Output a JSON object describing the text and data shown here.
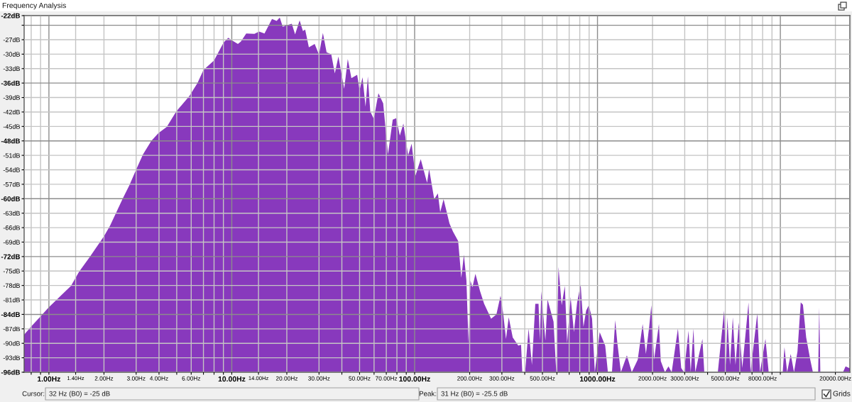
{
  "chart_data": {
    "type": "area",
    "title": "Frequency Analysis",
    "color": "#8839bd",
    "log": "x",
    "grid": true,
    "xlim": [
      0.732,
      24000
    ],
    "ylim": [
      -96,
      -22
    ],
    "xticks": [
      {
        "value": 0.8,
        "label": null
      },
      {
        "value": 0.9,
        "label": null
      },
      {
        "value": 1,
        "label": "1.00Hz"
      },
      {
        "value": 1.4,
        "label": "1.40Hz"
      },
      {
        "value": 2,
        "label": "2.00Hz"
      },
      {
        "value": 3,
        "label": "3.00Hz"
      },
      {
        "value": 4,
        "label": "4.00Hz"
      },
      {
        "value": 5,
        "label": null
      },
      {
        "value": 6,
        "label": "6.00Hz"
      },
      {
        "value": 7,
        "label": null
      },
      {
        "value": 8,
        "label": null
      },
      {
        "value": 9,
        "label": null
      },
      {
        "value": 10,
        "label": "10.00Hz"
      },
      {
        "value": 14,
        "label": "14.00Hz"
      },
      {
        "value": 20,
        "label": "20.00Hz"
      },
      {
        "value": 30,
        "label": "30.00Hz"
      },
      {
        "value": 40,
        "label": null
      },
      {
        "value": 50,
        "label": "50.00Hz"
      },
      {
        "value": 60,
        "label": null
      },
      {
        "value": 70,
        "label": "70.00Hz"
      },
      {
        "value": 80,
        "label": null
      },
      {
        "value": 90,
        "label": null
      },
      {
        "value": 100,
        "label": "100.00Hz"
      },
      {
        "value": 200,
        "label": "200.00Hz"
      },
      {
        "value": 300,
        "label": "300.00Hz"
      },
      {
        "value": 400,
        "label": null
      },
      {
        "value": 500,
        "label": "500.00Hz"
      },
      {
        "value": 600,
        "label": null
      },
      {
        "value": 700,
        "label": null
      },
      {
        "value": 800,
        "label": null
      },
      {
        "value": 900,
        "label": null
      },
      {
        "value": 1000,
        "label": "1000.00Hz"
      },
      {
        "value": 2000,
        "label": "2000.00Hz"
      },
      {
        "value": 3000,
        "label": "3000.00Hz"
      },
      {
        "value": 4000,
        "label": null
      },
      {
        "value": 5000,
        "label": "5000.00Hz"
      },
      {
        "value": 6000,
        "label": null
      },
      {
        "value": 7000,
        "label": null
      },
      {
        "value": 8000,
        "label": "8000.00Hz"
      },
      {
        "value": 9000,
        "label": null
      },
      {
        "value": 10000,
        "label": null
      },
      {
        "value": 20000,
        "label": "20000.00Hz"
      }
    ],
    "yticks": [
      {
        "value": -22,
        "label": "-22dB"
      },
      {
        "value": -24,
        "label": null
      },
      {
        "value": -27,
        "label": "-27dB"
      },
      {
        "value": -30,
        "label": "-30dB"
      },
      {
        "value": -33,
        "label": "-33dB"
      },
      {
        "value": -36,
        "label": "-36dB"
      },
      {
        "value": -39,
        "label": "-39dB"
      },
      {
        "value": -42,
        "label": "-42dB"
      },
      {
        "value": -45,
        "label": "-45dB"
      },
      {
        "value": -48,
        "label": "-48dB"
      },
      {
        "value": -51,
        "label": "-51dB"
      },
      {
        "value": -54,
        "label": "-54dB"
      },
      {
        "value": -57,
        "label": "-57dB"
      },
      {
        "value": -60,
        "label": "-60dB"
      },
      {
        "value": -63,
        "label": "-63dB"
      },
      {
        "value": -66,
        "label": "-66dB"
      },
      {
        "value": -69,
        "label": "-69dB"
      },
      {
        "value": -72,
        "label": "-72dB"
      },
      {
        "value": -75,
        "label": "-75dB"
      },
      {
        "value": -78,
        "label": "-78dB"
      },
      {
        "value": -81,
        "label": "-81dB"
      },
      {
        "value": -84,
        "label": "-84dB"
      },
      {
        "value": -87,
        "label": "-87dB"
      },
      {
        "value": -90,
        "label": "-90dB"
      },
      {
        "value": -93,
        "label": "-93dB"
      },
      {
        "value": -96,
        "label": "-96dB"
      }
    ],
    "x": [
      0.732,
      0.8,
      0.9,
      1.0,
      1.32,
      1.46,
      1.68,
      2.0,
      2.16,
      2.54,
      2.74,
      3.02,
      3.27,
      3.63,
      3.97,
      4.41,
      4.97,
      5.86,
      6.49,
      7.0,
      8.0,
      9.02,
      9.57,
      10.0,
      10.8,
      11.2,
      12.0,
      13.3,
      14.1,
      15.1,
      16.6,
      17.6,
      18.3,
      19.0,
      20.0,
      21.3,
      22.2,
      23.5,
      24.5,
      25.2,
      26.4,
      28.4,
      30.0,
      31.5,
      33.0,
      35.0,
      36.6,
      38.3,
      41.2,
      43.1,
      45.1,
      48.5,
      50.0,
      51.9,
      53.9,
      55.5,
      57.2,
      59.8,
      63.4,
      67.3,
      71.5,
      75.9,
      79.3,
      83.0,
      86.8,
      92.1,
      96.3,
      101,
      108,
      117,
      120,
      128,
      134,
      138,
      144,
      155,
      162,
      173,
      180,
      186,
      192,
      197,
      202,
      207,
      215,
      228,
      240,
      262,
      280,
      295,
      305,
      316,
      327,
      344,
      369,
      382,
      388,
      402,
      420,
      438,
      457,
      476,
      484,
      493,
      519,
      533,
      575,
      595,
      612,
      637,
      663,
      682,
      713,
      743,
      774,
      809,
      838,
      867,
      897,
      934,
      967,
      1028,
      1102,
      1140,
      1200,
      1250,
      1285,
      1343,
      1448,
      1540,
      1660,
      1766,
      1840,
      1917,
      1970,
      2039,
      2168,
      2219,
      2338,
      2445,
      2545,
      2754,
      2869,
      2971,
      3148,
      3234,
      3348,
      3427,
      3748,
      3838,
      4551,
      4926,
      5047,
      5132,
      5307,
      5496,
      5685,
      5929,
      6194,
      6700,
      6865,
      7480,
      7739,
      8289,
      8635,
      10300,
      10532,
      10894,
      11395,
      11875,
      12408,
      12926,
      13290,
      13845,
      14571,
      15070,
      16100,
      16321,
      16545,
      22000,
      22740,
      24000
    ],
    "values": [
      -88.2,
      -86.5,
      -84.4,
      -82.5,
      -78.1,
      -75.2,
      -72.0,
      -67.8,
      -65.6,
      -59.9,
      -57.4,
      -53.7,
      -50.8,
      -48.0,
      -46.4,
      -45.1,
      -41.9,
      -38.7,
      -36.0,
      -33.3,
      -31.3,
      -27.6,
      -26.6,
      -27.1,
      -27.9,
      -27.4,
      -25.7,
      -25.8,
      -25.3,
      -25.7,
      -22.7,
      -23.1,
      -22.4,
      -24.3,
      -24.0,
      -23.7,
      -25.9,
      -23.0,
      -25.2,
      -24.9,
      -28.6,
      -27.9,
      -30.1,
      -25.6,
      -29.6,
      -30.0,
      -34.0,
      -30.5,
      -37.2,
      -31.0,
      -35.0,
      -34.3,
      -37.5,
      -34.8,
      -40.9,
      -34.6,
      -41.9,
      -43.4,
      -38.1,
      -40.2,
      -50.8,
      -43.6,
      -43.3,
      -46.9,
      -44.4,
      -51.0,
      -48.6,
      -55.2,
      -51.8,
      -56.7,
      -53.8,
      -60.1,
      -58.9,
      -62.8,
      -60.1,
      -65.1,
      -66.8,
      -68.8,
      -76.4,
      -71.6,
      -77.0,
      -90.0,
      -77.0,
      -78.4,
      -75.6,
      -79.2,
      -81.8,
      -84.9,
      -84.0,
      -80.1,
      -83.8,
      -89.1,
      -84.6,
      -88.8,
      -90.5,
      -90.3,
      -96,
      -96,
      -86.9,
      -94.5,
      -81.8,
      -81.8,
      -89.4,
      -79.2,
      -89.4,
      -80.9,
      -85.5,
      -96,
      -74.1,
      -82.1,
      -78.1,
      -90.0,
      -80.4,
      -87.7,
      -81.5,
      -77.8,
      -86.6,
      -83.2,
      -82.1,
      -84.9,
      -96,
      -87.7,
      -90.5,
      -96,
      -96,
      -85.2,
      -90.0,
      -96,
      -92.5,
      -96,
      -93.4,
      -86.0,
      -92.2,
      -86.6,
      -82.1,
      -93.4,
      -86.0,
      -93.7,
      -96,
      -94.8,
      -96,
      -86.9,
      -95.1,
      -96,
      -87.4,
      -96,
      -86.9,
      -96,
      -89.1,
      -96,
      -96,
      -83.2,
      -94.5,
      -84.6,
      -94.5,
      -84.6,
      -94.5,
      -85.7,
      -95.1,
      -81.5,
      -96,
      -83.8,
      -96,
      -89.1,
      -96,
      -96,
      -90.8,
      -96,
      -92.2,
      -96,
      -91.7,
      -81.5,
      -82.0,
      -88.8,
      -93.4,
      -96,
      -96,
      -82.6,
      -96,
      -96,
      -94.8,
      -95.2
    ],
    "annotations": [
      "Cursor:",
      "32 Hz (B0) = -25 dB",
      "Peak:",
      "31 Hz (B0) = -25.5 dB",
      "Grids"
    ]
  }
}
